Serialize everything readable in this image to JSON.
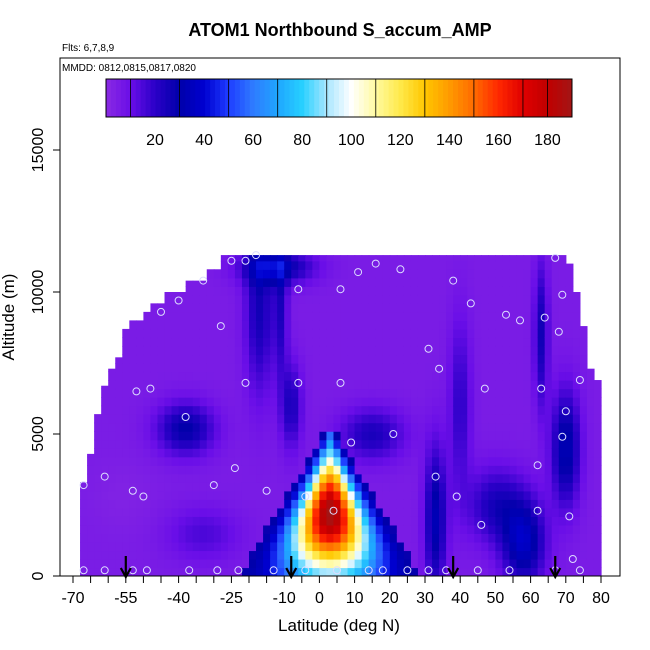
{
  "chart_data": {
    "type": "heatmap",
    "title": "ATOM1 Northbound S_accum_AMP",
    "annotations": [
      "Flts: 6,7,8,9",
      "MMDD: 0812,0815,0817,0820"
    ],
    "xlabel": "Latitude (deg N)",
    "ylabel": "Altitude (m)",
    "xlim": [
      -70,
      80
    ],
    "ylim": [
      0,
      17500
    ],
    "x_ticks": [
      -70,
      -65,
      -60,
      -55,
      -50,
      -45,
      -40,
      -35,
      -30,
      -25,
      -20,
      -15,
      -10,
      -5,
      0,
      5,
      10,
      15,
      20,
      25,
      30,
      35,
      40,
      45,
      50,
      55,
      60,
      65,
      70,
      75,
      80
    ],
    "x_tick_labels": [
      "-70",
      "-55",
      "-40",
      "-25",
      "-10",
      "0",
      "10",
      "20",
      "30",
      "40",
      "50",
      "60",
      "70",
      "80"
    ],
    "x_tick_label_values": [
      -70,
      -55,
      -40,
      -25,
      -10,
      0,
      10,
      20,
      30,
      40,
      50,
      60,
      70,
      80
    ],
    "y_ticks": [
      0,
      5000,
      10000,
      15000
    ],
    "y_tick_labels": [
      "0",
      "5000",
      "10000",
      "15000"
    ],
    "colorbar": {
      "range": [
        0,
        190
      ],
      "ticks": [
        20,
        40,
        60,
        80,
        100,
        120,
        140,
        160,
        180
      ],
      "tick_labels": [
        "20",
        "40",
        "60",
        "80",
        "100",
        "120",
        "140",
        "160",
        "180"
      ],
      "colors": [
        "#8a2be2",
        "#6a0ee8",
        "#2b00c8",
        "#0000aa",
        "#0000d0",
        "#1e3cff",
        "#2f7bff",
        "#1fa6ff",
        "#27d0ff",
        "#a8e6ff",
        "#ffffff",
        "#fffaa0",
        "#ffe94a",
        "#ffc600",
        "#ff9a00",
        "#ff6a00",
        "#ff2800",
        "#e00000",
        "#c00000",
        "#a31515"
      ]
    },
    "domain_envelope": [
      {
        "lat": -68,
        "top": 3300
      },
      {
        "lat": -66,
        "top": 3300
      },
      {
        "lat": -66,
        "top": 4300
      },
      {
        "lat": -64,
        "top": 4300
      },
      {
        "lat": -64,
        "top": 5700
      },
      {
        "lat": -62,
        "top": 5700
      },
      {
        "lat": -62,
        "top": 6700
      },
      {
        "lat": -60,
        "top": 6700
      },
      {
        "lat": -60,
        "top": 7300
      },
      {
        "lat": -58,
        "top": 7300
      },
      {
        "lat": -58,
        "top": 7700
      },
      {
        "lat": -56,
        "top": 7700
      },
      {
        "lat": -56,
        "top": 8700
      },
      {
        "lat": -53,
        "top": 8700
      },
      {
        "lat": -53,
        "top": 9000
      },
      {
        "lat": -50,
        "top": 9000
      },
      {
        "lat": -50,
        "top": 9300
      },
      {
        "lat": -47,
        "top": 9300
      },
      {
        "lat": -47,
        "top": 9600
      },
      {
        "lat": -44,
        "top": 9600
      },
      {
        "lat": -44,
        "top": 10000
      },
      {
        "lat": -38,
        "top": 10000
      },
      {
        "lat": -38,
        "top": 10400
      },
      {
        "lat": -32,
        "top": 10400
      },
      {
        "lat": -32,
        "top": 10800
      },
      {
        "lat": -27,
        "top": 10800
      },
      {
        "lat": -27,
        "top": 11300
      },
      {
        "lat": 70,
        "top": 11300
      },
      {
        "lat": 70,
        "top": 11000
      },
      {
        "lat": 71,
        "top": 11000
      },
      {
        "lat": 71,
        "top": 10600
      },
      {
        "lat": 72,
        "top": 10600
      },
      {
        "lat": 72,
        "top": 10000
      },
      {
        "lat": 73,
        "top": 10000
      },
      {
        "lat": 73,
        "top": 9500
      },
      {
        "lat": 74,
        "top": 9500
      },
      {
        "lat": 74,
        "top": 8800
      },
      {
        "lat": 75,
        "top": 8800
      },
      {
        "lat": 75,
        "top": 8000
      },
      {
        "lat": 76,
        "top": 8000
      },
      {
        "lat": 76,
        "top": 7300
      },
      {
        "lat": 77,
        "top": 7300
      },
      {
        "lat": 77,
        "top": 6900
      },
      {
        "lat": 80,
        "top": 6900
      },
      {
        "lat": 80,
        "top": 0
      },
      {
        "lat": -68,
        "top": 0
      }
    ],
    "background_value": 5,
    "features": [
      {
        "lat": -56,
        "alt": 2800,
        "value": 3,
        "lat_spread": 9,
        "alt_spread": 1200
      },
      {
        "lat": -38,
        "alt": 5200,
        "value": 30,
        "lat_spread": 8,
        "alt_spread": 900
      },
      {
        "lat": -33,
        "alt": 1500,
        "value": 15,
        "lat_spread": 10,
        "alt_spread": 900
      },
      {
        "lat": -17,
        "alt": 9500,
        "value": 26,
        "lat_spread": 4,
        "alt_spread": 3000
      },
      {
        "lat": -11,
        "alt": 9500,
        "value": 22,
        "lat_spread": 2,
        "alt_spread": 2500
      },
      {
        "lat": -12,
        "alt": 10900,
        "value": 32,
        "lat_spread": 10,
        "alt_spread": 600
      },
      {
        "lat": -8,
        "alt": 6000,
        "value": 24,
        "lat_spread": 3,
        "alt_spread": 1500
      },
      {
        "lat": 15,
        "alt": 5000,
        "value": 24,
        "lat_spread": 9,
        "alt_spread": 900
      },
      {
        "lat": 33,
        "alt": 2000,
        "value": 33,
        "lat_spread": 3,
        "alt_spread": 2500
      },
      {
        "lat": 40,
        "alt": 6000,
        "value": 20,
        "lat_spread": 3,
        "alt_spread": 3000
      },
      {
        "lat": 50,
        "alt": 2500,
        "value": 24,
        "lat_spread": 8,
        "alt_spread": 1300
      },
      {
        "lat": 58,
        "alt": 1200,
        "value": 36,
        "lat_spread": 6,
        "alt_spread": 1500
      },
      {
        "lat": 63,
        "alt": 8500,
        "value": 26,
        "lat_spread": 2,
        "alt_spread": 2500
      },
      {
        "lat": 70,
        "alt": 4500,
        "value": 34,
        "lat_spread": 4,
        "alt_spread": 2000
      }
    ],
    "plume": {
      "center_lat": 3,
      "peak_alt": 2200,
      "peak_value": 190,
      "base_half_width": 24,
      "top_alt": 5000
    },
    "sample_points": [
      [
        -67,
        3200
      ],
      [
        -67,
        200
      ],
      [
        -61,
        3500
      ],
      [
        -61,
        200
      ],
      [
        -53,
        3000
      ],
      [
        -53,
        200
      ],
      [
        -52,
        6500
      ],
      [
        -50,
        2800
      ],
      [
        -49,
        200
      ],
      [
        -48,
        6600
      ],
      [
        -45,
        9300
      ],
      [
        -40,
        9700
      ],
      [
        -38,
        5600
      ],
      [
        -37,
        200
      ],
      [
        -33,
        10400
      ],
      [
        -30,
        3200
      ],
      [
        -29,
        200
      ],
      [
        -28,
        8800
      ],
      [
        -25,
        11100
      ],
      [
        -24,
        3800
      ],
      [
        -23,
        200
      ],
      [
        -21,
        6800
      ],
      [
        -21,
        11100
      ],
      [
        -18,
        11300
      ],
      [
        -15,
        3000
      ],
      [
        -13,
        200
      ],
      [
        -6,
        6800
      ],
      [
        -6,
        10100
      ],
      [
        -4,
        2800
      ],
      [
        -4,
        200
      ],
      [
        4,
        2300
      ],
      [
        5,
        200
      ],
      [
        6,
        6800
      ],
      [
        6,
        10100
      ],
      [
        9,
        4700
      ],
      [
        11,
        10700
      ],
      [
        14,
        200
      ],
      [
        16,
        11000
      ],
      [
        18,
        200
      ],
      [
        21,
        5000
      ],
      [
        23,
        10800
      ],
      [
        25,
        200
      ],
      [
        31,
        8000
      ],
      [
        31,
        200
      ],
      [
        33,
        3500
      ],
      [
        34,
        7300
      ],
      [
        36,
        200
      ],
      [
        38,
        10400
      ],
      [
        39,
        2800
      ],
      [
        43,
        9600
      ],
      [
        45,
        200
      ],
      [
        46,
        1800
      ],
      [
        47,
        6600
      ],
      [
        53,
        9200
      ],
      [
        54,
        200
      ],
      [
        57,
        9000
      ],
      [
        62,
        3900
      ],
      [
        62,
        2300
      ],
      [
        63,
        6600
      ],
      [
        64,
        9100
      ],
      [
        67,
        200
      ],
      [
        67,
        11200
      ],
      [
        68,
        8600
      ],
      [
        69,
        4900
      ],
      [
        69,
        9900
      ],
      [
        70,
        5800
      ],
      [
        71,
        2100
      ],
      [
        72,
        600
      ],
      [
        74,
        6900
      ],
      [
        74,
        200
      ]
    ],
    "arrows_lat": [
      -55,
      -8,
      38,
      67
    ]
  }
}
